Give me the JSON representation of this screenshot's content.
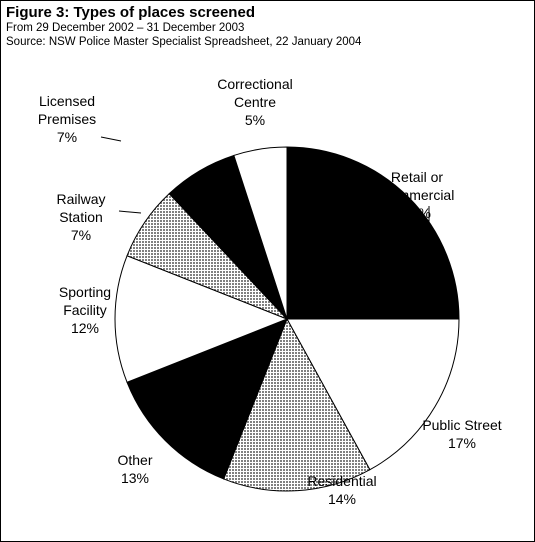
{
  "chart_data": {
    "type": "pie",
    "title": "Figure 3: Types of places screened",
    "subtitle": "From 29 December 2002 – 31 December 2003",
    "source": "Source:  NSW Police Master Specialist Spreadsheet, 22 January 2004",
    "categories": [
      "Retail or Commercial",
      "Public Street",
      "Residential",
      "Other",
      "Sporting Facility",
      "Railway Station",
      "Licensed Premises",
      "Correctional Centre"
    ],
    "values": [
      25,
      17,
      14,
      13,
      12,
      7,
      7,
      5
    ],
    "value_labels": [
      "25%",
      "17%",
      "14%",
      "13%",
      "12%",
      "7%",
      "7%",
      "5%"
    ],
    "colors": [
      "#000000",
      "#ffffff",
      "#b4b4b4",
      "#000000",
      "#ffffff",
      "#b4b4b4",
      "#000000",
      "#ffffff"
    ]
  }
}
